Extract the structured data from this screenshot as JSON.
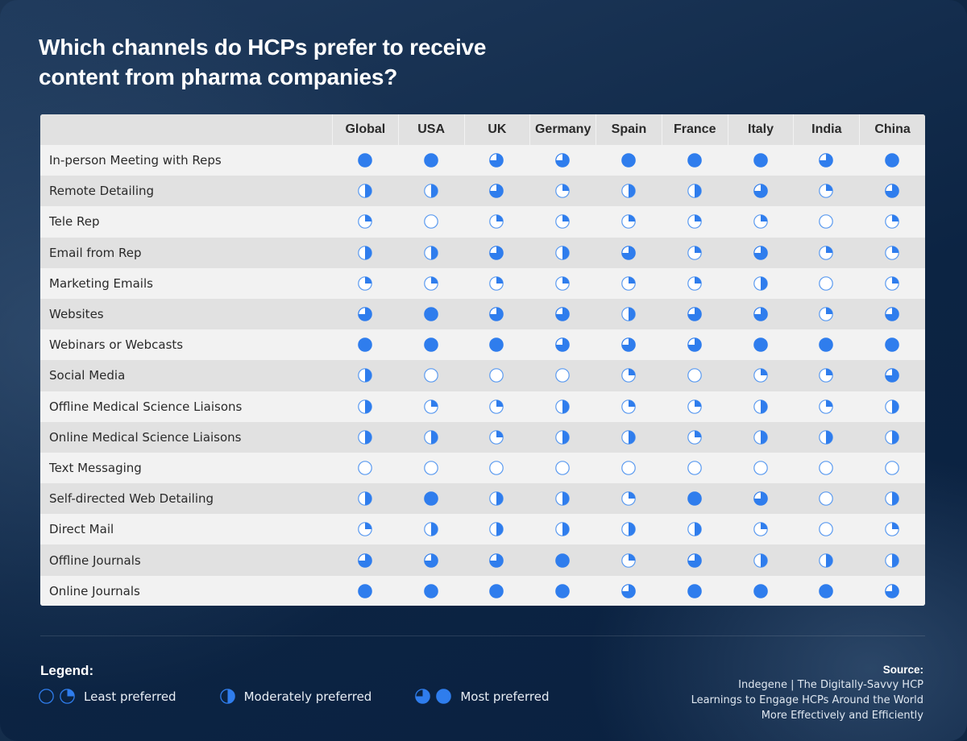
{
  "title": "Which channels do HCPs prefer to receive content from pharma companies?",
  "title_lines": [
    "Which channels do HCPs prefer to receive",
    "content from pharma companies?"
  ],
  "colors": {
    "ball_fill": "#2f7ded",
    "ball_stroke": "#5a9af0",
    "ball_empty": "#ffffff",
    "row_light": "#f2f2f2",
    "row_dark": "#e1e1e1"
  },
  "table": {
    "columns": [
      "Global",
      "USA",
      "UK",
      "Germany",
      "Spain",
      "France",
      "Italy",
      "India",
      "China"
    ],
    "rows": [
      {
        "label": "In-person Meeting with Reps",
        "values": [
          4,
          4,
          3,
          3,
          4,
          4,
          4,
          3,
          4
        ]
      },
      {
        "label": "Remote Detailing",
        "values": [
          2,
          2,
          3,
          1,
          2,
          2,
          3,
          1,
          3
        ]
      },
      {
        "label": "Tele Rep",
        "values": [
          1,
          0,
          1,
          1,
          1,
          1,
          1,
          0,
          1
        ]
      },
      {
        "label": "Email from Rep",
        "values": [
          2,
          2,
          3,
          2,
          3,
          1,
          3,
          1,
          1
        ]
      },
      {
        "label": "Marketing Emails",
        "values": [
          1,
          1,
          1,
          1,
          1,
          1,
          2,
          0,
          1
        ]
      },
      {
        "label": "Websites",
        "values": [
          3,
          4,
          3,
          3,
          2,
          3,
          3,
          1,
          3
        ]
      },
      {
        "label": "Webinars or Webcasts",
        "values": [
          4,
          4,
          4,
          3,
          3,
          3,
          4,
          4,
          4
        ]
      },
      {
        "label": "Social Media",
        "values": [
          2,
          0,
          0,
          0,
          1,
          0,
          1,
          1,
          3
        ]
      },
      {
        "label": "Offline Medical Science Liaisons",
        "values": [
          2,
          1,
          1,
          2,
          1,
          1,
          2,
          1,
          2
        ]
      },
      {
        "label": "Online Medical Science Liaisons",
        "values": [
          2,
          2,
          1,
          2,
          2,
          1,
          2,
          2,
          2
        ]
      },
      {
        "label": "Text Messaging",
        "values": [
          0,
          0,
          0,
          0,
          0,
          0,
          0,
          0,
          0
        ]
      },
      {
        "label": "Self-directed Web Detailing",
        "values": [
          2,
          4,
          2,
          2,
          1,
          4,
          3,
          0,
          2
        ]
      },
      {
        "label": "Direct Mail",
        "values": [
          1,
          2,
          2,
          2,
          2,
          2,
          1,
          0,
          1
        ]
      },
      {
        "label": "Offline Journals",
        "values": [
          3,
          3,
          3,
          4,
          1,
          3,
          2,
          2,
          2
        ]
      },
      {
        "label": "Online Journals",
        "values": [
          4,
          4,
          4,
          4,
          3,
          4,
          4,
          4,
          3
        ]
      }
    ]
  },
  "legend": {
    "title": "Legend:",
    "items": [
      {
        "label": "Least preferred",
        "icons": [
          0,
          1
        ]
      },
      {
        "label": "Moderately preferred",
        "icons": [
          2
        ]
      },
      {
        "label": "Most preferred",
        "icons": [
          3,
          4
        ]
      }
    ]
  },
  "source": {
    "title": "Source:",
    "lines": [
      "Indegene | The Digitally-Savvy HCP",
      "Learnings to Engage HCPs Around the World",
      "More Effectively and Efficiently"
    ]
  },
  "chart_data": {
    "type": "table",
    "title": "Which channels do HCPs prefer to receive content from pharma companies?",
    "encoding": "Harvey balls: 0=empty, 1=quarter, 2=half, 3=three-quarter, 4=full; 0-1 Least preferred, 2 Moderately preferred, 3-4 Most preferred",
    "columns": [
      "Global",
      "USA",
      "UK",
      "Germany",
      "Spain",
      "France",
      "Italy",
      "India",
      "China"
    ],
    "categories": [
      "In-person Meeting with Reps",
      "Remote Detailing",
      "Tele Rep",
      "Email from Rep",
      "Marketing Emails",
      "Websites",
      "Webinars or Webcasts",
      "Social Media",
      "Offline Medical Science Liaisons",
      "Online Medical Science Liaisons",
      "Text Messaging",
      "Self-directed Web Detailing",
      "Direct Mail",
      "Offline Journals",
      "Online Journals"
    ],
    "series": [
      {
        "name": "Global",
        "values": [
          4,
          2,
          1,
          2,
          1,
          3,
          4,
          2,
          2,
          2,
          0,
          2,
          1,
          3,
          4
        ]
      },
      {
        "name": "USA",
        "values": [
          4,
          2,
          0,
          2,
          1,
          4,
          4,
          0,
          1,
          2,
          0,
          4,
          2,
          3,
          4
        ]
      },
      {
        "name": "UK",
        "values": [
          3,
          3,
          1,
          3,
          1,
          3,
          4,
          0,
          1,
          1,
          0,
          2,
          2,
          3,
          4
        ]
      },
      {
        "name": "Germany",
        "values": [
          3,
          1,
          1,
          2,
          1,
          3,
          3,
          0,
          2,
          2,
          0,
          2,
          2,
          4,
          4
        ]
      },
      {
        "name": "Spain",
        "values": [
          4,
          2,
          1,
          3,
          1,
          2,
          3,
          1,
          1,
          2,
          0,
          1,
          2,
          1,
          3
        ]
      },
      {
        "name": "France",
        "values": [
          4,
          2,
          1,
          1,
          1,
          3,
          3,
          0,
          1,
          1,
          0,
          4,
          2,
          3,
          4
        ]
      },
      {
        "name": "Italy",
        "values": [
          4,
          3,
          1,
          3,
          2,
          3,
          4,
          1,
          2,
          2,
          0,
          3,
          1,
          2,
          4
        ]
      },
      {
        "name": "India",
        "values": [
          3,
          1,
          0,
          1,
          0,
          1,
          4,
          1,
          1,
          2,
          0,
          0,
          0,
          2,
          4
        ]
      },
      {
        "name": "China",
        "values": [
          4,
          3,
          1,
          1,
          1,
          3,
          4,
          3,
          2,
          2,
          0,
          2,
          1,
          2,
          3
        ]
      }
    ],
    "legend": [
      "Least preferred",
      "Moderately preferred",
      "Most preferred"
    ],
    "legend_position": "bottom-left",
    "source": "Indegene | The Digitally-Savvy HCP — Learnings to Engage HCPs Around the World More Effectively and Efficiently"
  }
}
